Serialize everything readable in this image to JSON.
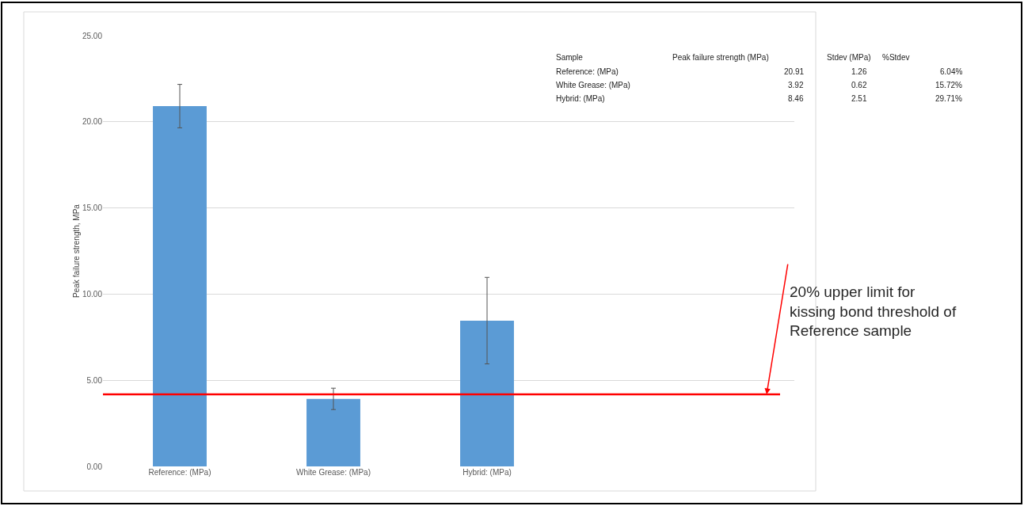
{
  "chart_data": {
    "type": "bar",
    "ylabel": "Peak failure strength, MPa",
    "categories": [
      "Reference: (MPa)",
      "White Grease: (MPa)",
      "Hybrid: (MPa)"
    ],
    "values": [
      20.91,
      3.92,
      8.46
    ],
    "errors": [
      1.26,
      0.62,
      2.51
    ],
    "color": "#5b9bd5",
    "ylim": [
      0,
      25
    ],
    "yticks": [
      {
        "value": 0,
        "label": "0.00"
      },
      {
        "value": 5,
        "label": "5.00"
      },
      {
        "value": 10,
        "label": "10.00"
      },
      {
        "value": 15,
        "label": "15.00"
      },
      {
        "value": 20,
        "label": "20.00"
      },
      {
        "value": 25,
        "label": "25.00"
      }
    ],
    "grid": "y",
    "legend": false,
    "ref_lines": [
      {
        "axis": "y",
        "value": 4.18,
        "label": "20% upper limit for kissing bond threshold of Reference sample",
        "color": "#ff0000"
      }
    ],
    "annotations": [
      "Sample",
      "Peak failure strength (MPa)",
      "Stdev (MPa)",
      "%Stdev",
      "Reference: (MPa)",
      "20.91",
      "1.26",
      "6.04%",
      "White Grease: (MPa)",
      "3.92",
      "0.62",
      "15.72%",
      "Hybrid: (MPa)",
      "8.46",
      "2.51",
      "29.71%"
    ]
  }
}
